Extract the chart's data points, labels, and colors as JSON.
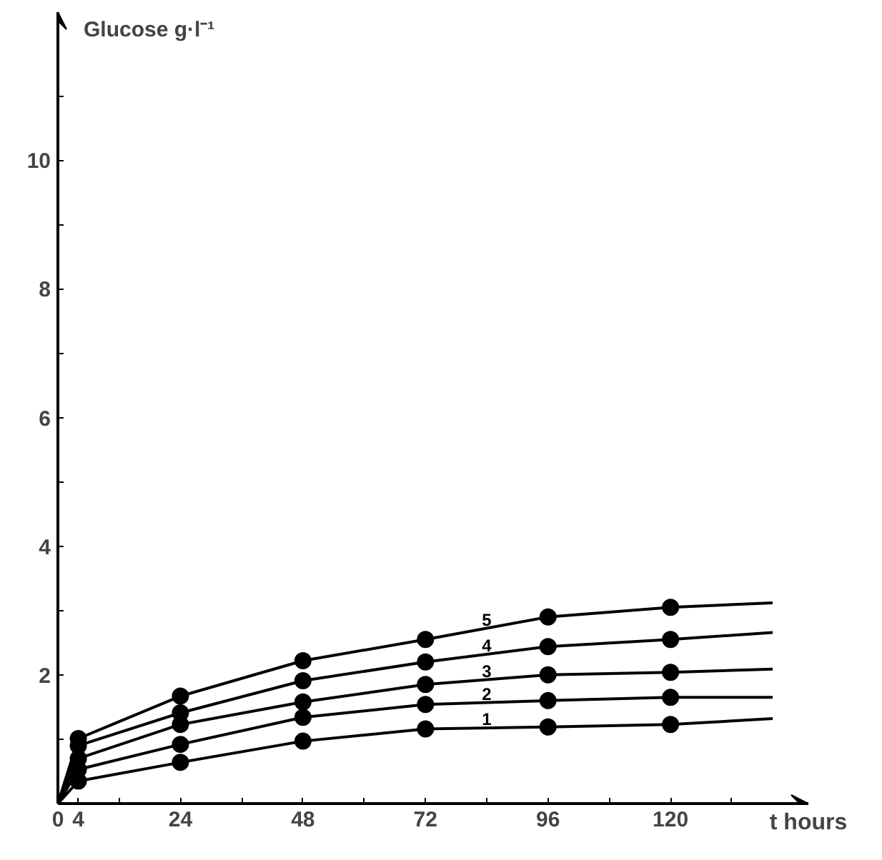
{
  "chart_data": {
    "type": "line",
    "xlabel": "t hours",
    "ylabel": "Glucose g·l⁻¹",
    "xlim": [
      0,
      147
    ],
    "ylim": [
      0,
      12.3
    ],
    "xticks": [
      0,
      4,
      {
        "value": 12,
        "label": null
      },
      24,
      {
        "value": 36,
        "label": null
      },
      48,
      {
        "value": 60,
        "label": null
      },
      72,
      {
        "value": 84,
        "label": null
      },
      96,
      {
        "value": 108,
        "label": null
      },
      120,
      {
        "value": 132,
        "label": null
      }
    ],
    "yticks": [
      {
        "value": 1,
        "label": null
      },
      2,
      {
        "value": 3,
        "label": null
      },
      4,
      {
        "value": 5,
        "label": null
      },
      6,
      {
        "value": 7,
        "label": null
      },
      8,
      {
        "value": 9,
        "label": null
      },
      10,
      {
        "value": 11,
        "label": null
      }
    ],
    "grid": false,
    "line_style": "solid",
    "series": [
      {
        "name": "1",
        "color": "#000000",
        "marker": "none",
        "x": [
          0,
          4,
          24,
          48,
          72,
          96,
          120,
          140
        ],
        "values": [
          0,
          0.35,
          0.64,
          0.97,
          1.16,
          1.19,
          1.23,
          1.32
        ]
      },
      {
        "name": "2",
        "color": "#000000",
        "marker": "none",
        "x": [
          0,
          4,
          24,
          48,
          72,
          96,
          120,
          140
        ],
        "values": [
          0,
          0.53,
          0.92,
          1.34,
          1.54,
          1.6,
          1.65,
          1.65
        ]
      },
      {
        "name": "3",
        "color": "#000000",
        "marker": "none",
        "x": [
          0,
          4,
          24,
          48,
          72,
          96,
          120,
          140
        ],
        "values": [
          0,
          0.7,
          1.23,
          1.58,
          1.85,
          2.0,
          2.04,
          2.09
        ]
      },
      {
        "name": "4",
        "color": "#000000",
        "marker": "none",
        "x": [
          0,
          4,
          24,
          48,
          72,
          96,
          120,
          140
        ],
        "values": [
          0,
          0.9,
          1.41,
          1.91,
          2.2,
          2.44,
          2.55,
          2.66
        ]
      },
      {
        "name": "5",
        "color": "#000000",
        "marker": "none",
        "x": [
          0,
          4,
          24,
          48,
          72,
          96,
          120,
          140
        ],
        "values": [
          0,
          1.01,
          1.67,
          2.22,
          2.55,
          2.9,
          3.05,
          3.12
        ]
      },
      {
        "type": "scatter",
        "color": "#000000",
        "marker": "circle",
        "x": [
          4,
          24,
          48,
          72,
          96,
          120
        ],
        "values": [
          0.35,
          0.64,
          0.97,
          1.16,
          1.19,
          1.23
        ]
      },
      {
        "type": "scatter",
        "color": "#000000",
        "marker": "circle",
        "x": [
          4,
          24,
          48,
          72,
          96,
          120
        ],
        "values": [
          0.53,
          0.92,
          1.34,
          1.54,
          1.6,
          1.65
        ]
      },
      {
        "type": "scatter",
        "color": "#000000",
        "marker": "circle",
        "x": [
          4,
          24,
          48,
          72,
          96,
          120
        ],
        "values": [
          0.7,
          1.23,
          1.58,
          1.85,
          2.0,
          2.04
        ]
      },
      {
        "type": "scatter",
        "color": "#000000",
        "marker": "circle",
        "x": [
          4,
          24,
          48,
          72,
          96,
          120
        ],
        "values": [
          0.9,
          1.41,
          1.91,
          2.2,
          2.44,
          2.55
        ]
      },
      {
        "type": "scatter",
        "color": "#000000",
        "marker": "circle",
        "x": [
          4,
          24,
          48,
          72,
          96,
          120
        ],
        "values": [
          1.01,
          1.67,
          2.22,
          2.55,
          2.9,
          3.05
        ]
      }
    ]
  }
}
